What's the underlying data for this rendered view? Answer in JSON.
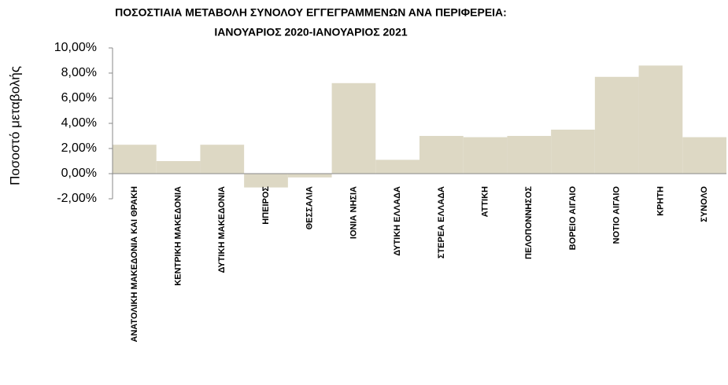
{
  "chart_data": {
    "type": "bar",
    "title": "ΠΟΣΟΣΤΙΑΙΑ ΜΕΤΑΒΟΛΗ  ΣΥΝΟΛΟΥ ΕΓΓΕΓΡΑΜΜΕΝΩΝ ΑΝΑ ΠΕΡΙΦΕΡΕΙΑ:",
    "subtitle": "ΙΑΝΟΥΑΡΙΟΣ 2020-ΙΑΝΟΥΑΡΙΟΣ   2021",
    "y_label": "Ποσοστό μεταβολής",
    "categories": [
      "ΑΝΑΤΟΛΙΚΗ ΜΑΚΕΔΟΝΙΑ ΚΑΙ ΘΡΑΚΗ",
      "ΚΕΝΤΡΙΚΗ ΜΑΚΕΔΟΝΙΑ",
      "ΔΥΤΙΚΗ ΜΑΚΕΔΟΝΙΑ",
      "ΗΠΕΙΡΟΣ",
      "ΘΕΣΣΑΛΙΑ",
      "ΙΟΝΙΑ ΝΗΣΙΑ",
      "ΔΥΤΙΚΗ ΕΛΛΑΔΑ",
      "ΣΤΕΡΕΑ ΕΛΛΑΔΑ",
      "ΑΤΤΙΚΗ",
      "ΠΕΛΟΠΟΝΝΗΣΟΣ",
      "ΒΟΡΕΙΟ ΑΙΓΑΙΟ",
      "ΝΟΤΙΟ ΑΙΓΑΙΟ",
      "ΚΡΗΤΗ",
      "ΣΥΝΟΛΟ"
    ],
    "values": [
      2.3,
      1.0,
      2.3,
      -1.1,
      -0.3,
      7.2,
      1.1,
      3.0,
      2.9,
      3.0,
      3.5,
      7.7,
      8.6,
      2.9
    ],
    "color": "#ddd8c4",
    "ylim": [
      -2,
      10
    ],
    "yticks": [
      {
        "value": -2,
        "label": "-2,00%"
      },
      {
        "value": 0,
        "label": "0,00%"
      },
      {
        "value": 2,
        "label": "2,00%"
      },
      {
        "value": 4,
        "label": "4,00%"
      },
      {
        "value": 6,
        "label": "6,00%"
      },
      {
        "value": 8,
        "label": "8,00%"
      },
      {
        "value": 10,
        "label": "10,00%"
      }
    ],
    "grid": false
  }
}
